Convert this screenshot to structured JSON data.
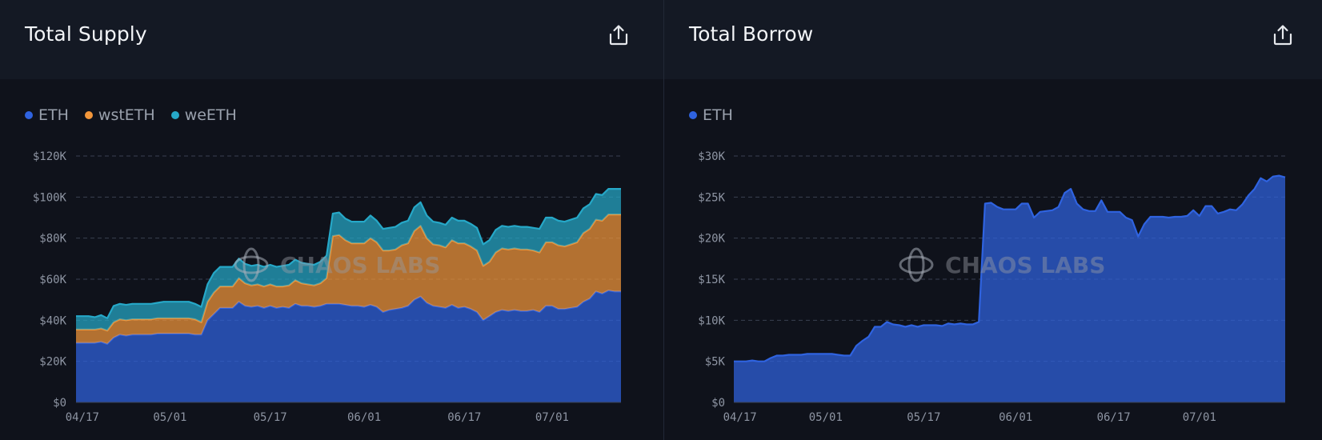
{
  "panels": [
    {
      "title": "Total Supply",
      "watermark": "CHAOS LABS",
      "share_icon": "share-upload-icon"
    },
    {
      "title": "Total Borrow",
      "watermark": "CHAOS LABS",
      "share_icon": "share-upload-icon"
    }
  ],
  "colors": {
    "ETH": "#2f63e0",
    "wstETH": "#f2963a",
    "weETH": "#26a8c8"
  },
  "chart_data": [
    {
      "type": "area",
      "stacked": true,
      "title": "Total Supply",
      "x_labels": [
        "04/17",
        "05/01",
        "05/17",
        "06/01",
        "06/17",
        "07/01"
      ],
      "x_label_index": [
        1,
        15,
        31,
        46,
        62,
        76
      ],
      "y_ticks": [
        "$0",
        "$20K",
        "$40K",
        "$60K",
        "$80K",
        "$100K",
        "$120K"
      ],
      "ylim": [
        0,
        120000
      ],
      "legend": "top-left",
      "grid": true,
      "series": [
        {
          "name": "ETH",
          "color": "#2f63e0",
          "values": [
            29000,
            29000,
            29000,
            29000,
            29500,
            28500,
            31500,
            33000,
            32500,
            33000,
            33000,
            33000,
            33000,
            33500,
            33500,
            33500,
            33500,
            33500,
            33500,
            33000,
            33000,
            40000,
            43000,
            46000,
            46000,
            46000,
            49000,
            47000,
            46500,
            47000,
            46000,
            47000,
            46000,
            46500,
            46000,
            48000,
            47000,
            47000,
            46500,
            47000,
            48000,
            48000,
            48000,
            47500,
            47000,
            47000,
            46500,
            47500,
            46500,
            44000,
            45000,
            45500,
            46000,
            47000,
            50000,
            51500,
            48500,
            47000,
            46500,
            46000,
            47500,
            46000,
            46500,
            45500,
            44000,
            40000,
            42000,
            44000,
            45000,
            44500,
            45000,
            44500,
            44500,
            45000,
            44000,
            47000,
            47000,
            45500,
            45500,
            46000,
            46500,
            49000,
            50500,
            54000,
            53000,
            54500,
            54000,
            54000
          ]
        },
        {
          "name": "wstETH",
          "color": "#f2963a",
          "values": [
            6500,
            6500,
            6500,
            6500,
            6500,
            6500,
            7500,
            7500,
            7500,
            7500,
            7500,
            7500,
            7500,
            7500,
            7500,
            7500,
            7500,
            7500,
            7500,
            7500,
            6000,
            9000,
            10500,
            10500,
            10500,
            10500,
            11500,
            11000,
            10500,
            10500,
            10500,
            10500,
            10500,
            10000,
            11000,
            11500,
            11000,
            10500,
            10500,
            11000,
            12500,
            33000,
            33500,
            31500,
            30500,
            30500,
            31000,
            32500,
            31500,
            30000,
            29000,
            29000,
            30500,
            30500,
            33500,
            34500,
            31500,
            30000,
            30000,
            29500,
            31500,
            31500,
            31000,
            30500,
            30000,
            26500,
            26500,
            29000,
            30000,
            30000,
            30000,
            30000,
            30000,
            29000,
            29000,
            31000,
            31000,
            31000,
            30500,
            31000,
            31500,
            33500,
            34000,
            35000,
            35500,
            37000,
            37500,
            37500
          ]
        },
        {
          "name": "weETH",
          "color": "#26a8c8",
          "values": [
            6500,
            6500,
            6500,
            6000,
            6500,
            6000,
            8000,
            7500,
            7500,
            7500,
            7500,
            7500,
            7500,
            7500,
            8000,
            8000,
            8000,
            8000,
            8000,
            7500,
            7500,
            8500,
            9500,
            9500,
            9500,
            9500,
            9500,
            9500,
            9500,
            9500,
            9500,
            9500,
            9500,
            10000,
            10000,
            10000,
            10000,
            10000,
            10000,
            10500,
            11000,
            11000,
            11000,
            10500,
            10500,
            10500,
            10500,
            11000,
            10500,
            10500,
            11000,
            11000,
            11000,
            11000,
            11500,
            11500,
            11000,
            11000,
            11000,
            11000,
            11000,
            11000,
            11000,
            11000,
            11000,
            10500,
            10500,
            11000,
            11000,
            11000,
            11000,
            11000,
            11000,
            11000,
            11500,
            12000,
            12000,
            12000,
            12000,
            12000,
            12000,
            12000,
            12000,
            12500,
            12500,
            12500,
            12500,
            12500
          ]
        }
      ]
    },
    {
      "type": "area",
      "stacked": false,
      "title": "Total Borrow",
      "x_labels": [
        "04/17",
        "05/01",
        "05/17",
        "06/01",
        "06/17",
        "07/01"
      ],
      "x_label_index": [
        1,
        15,
        31,
        46,
        62,
        76
      ],
      "y_ticks": [
        "$0",
        "$5K",
        "$10K",
        "$15K",
        "$20K",
        "$25K",
        "$30K"
      ],
      "ylim": [
        0,
        30000
      ],
      "legend": "top-left",
      "grid": true,
      "series": [
        {
          "name": "ETH",
          "color": "#2f63e0",
          "values": [
            5000,
            5000,
            5000,
            5100,
            5000,
            5000,
            5400,
            5700,
            5700,
            5800,
            5800,
            5800,
            5900,
            5900,
            5900,
            5900,
            5900,
            5800,
            5700,
            5700,
            6900,
            7500,
            8000,
            9200,
            9200,
            9800,
            9500,
            9400,
            9200,
            9400,
            9200,
            9400,
            9400,
            9400,
            9300,
            9600,
            9500,
            9600,
            9500,
            9500,
            9800,
            24200,
            24300,
            23800,
            23500,
            23500,
            23500,
            24200,
            24200,
            22500,
            23200,
            23300,
            23400,
            23800,
            25500,
            26000,
            24200,
            23500,
            23300,
            23300,
            24600,
            23200,
            23200,
            23200,
            22500,
            22200,
            20200,
            21700,
            22600,
            22600,
            22600,
            22500,
            22600,
            22600,
            22700,
            23400,
            22700,
            23900,
            23900,
            23000,
            23200,
            23500,
            23400,
            24100,
            25200,
            26000,
            27300,
            26900,
            27500,
            27600,
            27400
          ]
        }
      ]
    }
  ]
}
